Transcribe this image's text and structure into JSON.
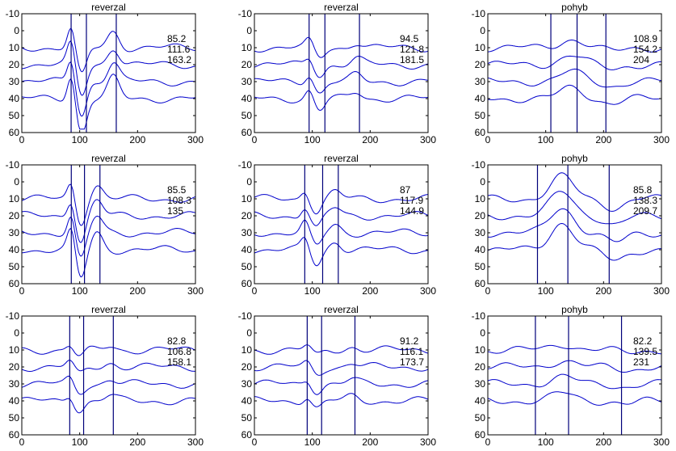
{
  "chart_data": [
    {
      "type": "line",
      "title": "reverzal",
      "markers": [
        85.2,
        111.6,
        163.2
      ],
      "labels": [
        "85.2",
        "111.6",
        "163.2"
      ],
      "kind": "rev",
      "amp": 12,
      "xlim": [
        0,
        300
      ],
      "ylim": [
        -10,
        60
      ],
      "xticks": [
        0,
        100,
        200,
        300
      ],
      "yticks": [
        -10,
        0,
        10,
        20,
        30,
        40,
        50,
        60
      ]
    },
    {
      "type": "line",
      "title": "reverzal",
      "markers": [
        94.5,
        121.8,
        181.5
      ],
      "labels": [
        "94.5",
        "121.8",
        "181.5"
      ],
      "kind": "rev",
      "amp": 4,
      "xlim": [
        0,
        300
      ],
      "ylim": [
        -10,
        60
      ],
      "xticks": [
        0,
        100,
        200,
        300
      ],
      "yticks": [
        -10,
        0,
        10,
        20,
        30,
        40,
        50,
        60
      ]
    },
    {
      "type": "line",
      "title": "pohyb",
      "markers": [
        108.9,
        154.2,
        204
      ],
      "labels": [
        "108.9",
        "154.2",
        "204"
      ],
      "kind": "poh",
      "amp": 5,
      "xlim": [
        0,
        300
      ],
      "ylim": [
        -10,
        60
      ],
      "xticks": [
        0,
        100,
        200,
        300
      ],
      "yticks": [
        -10,
        0,
        10,
        20,
        30,
        40,
        50,
        60
      ]
    },
    {
      "type": "line",
      "title": "reverzal",
      "markers": [
        85.5,
        108.3,
        135
      ],
      "labels": [
        "85.5",
        "108.3",
        "135"
      ],
      "kind": "rev",
      "amp": 10,
      "xlim": [
        0,
        300
      ],
      "ylim": [
        -10,
        60
      ],
      "xticks": [
        0,
        100,
        200,
        300
      ],
      "yticks": [
        -10,
        0,
        10,
        20,
        30,
        40,
        50,
        60
      ]
    },
    {
      "type": "line",
      "title": "reverzal",
      "markers": [
        87,
        117.9,
        144.9
      ],
      "labels": [
        "87",
        "117.9",
        "144.9"
      ],
      "kind": "rev",
      "amp": 5,
      "xlim": [
        0,
        300
      ],
      "ylim": [
        -10,
        60
      ],
      "xticks": [
        0,
        100,
        200,
        300
      ],
      "yticks": [
        -10,
        0,
        10,
        20,
        30,
        40,
        50,
        60
      ]
    },
    {
      "type": "line",
      "title": "pohyb",
      "markers": [
        85.8,
        138.3,
        209.7
      ],
      "labels": [
        "85.8",
        "138.3",
        "209.7"
      ],
      "kind": "poh",
      "amp": 13,
      "xlim": [
        0,
        300
      ],
      "ylim": [
        -10,
        60
      ],
      "xticks": [
        0,
        100,
        200,
        300
      ],
      "yticks": [
        -10,
        0,
        10,
        20,
        30,
        40,
        50,
        60
      ]
    },
    {
      "type": "line",
      "title": "reverzal",
      "markers": [
        82.8,
        106.8,
        158.1
      ],
      "labels": [
        "82.8",
        "106.8",
        "158.1"
      ],
      "kind": "rev",
      "amp": 3,
      "xlim": [
        0,
        300
      ],
      "ylim": [
        -10,
        60
      ],
      "xticks": [
        0,
        100,
        200,
        300
      ],
      "yticks": [
        -10,
        0,
        10,
        20,
        30,
        40,
        50,
        60
      ]
    },
    {
      "type": "line",
      "title": "reverzal",
      "markers": [
        91.2,
        116.1,
        173.7
      ],
      "labels": [
        "91.2",
        "116.1",
        "173.7"
      ],
      "kind": "rev",
      "amp": 2.5,
      "xlim": [
        0,
        300
      ],
      "ylim": [
        -10,
        60
      ],
      "xticks": [
        0,
        100,
        200,
        300
      ],
      "yticks": [
        -10,
        0,
        10,
        20,
        30,
        40,
        50,
        60
      ]
    },
    {
      "type": "line",
      "title": "pohyb",
      "markers": [
        82.2,
        139.5,
        231
      ],
      "labels": [
        "82.2",
        "139.5",
        "231"
      ],
      "kind": "poh",
      "amp": 3.5,
      "xlim": [
        0,
        300
      ],
      "ylim": [
        -10,
        60
      ],
      "xticks": [
        0,
        100,
        200,
        300
      ],
      "yticks": [
        -10,
        0,
        10,
        20,
        30,
        40,
        50,
        60
      ]
    }
  ],
  "colors": {
    "trace": "#0000cc",
    "marker": "#00007a",
    "axis": "#000000"
  }
}
